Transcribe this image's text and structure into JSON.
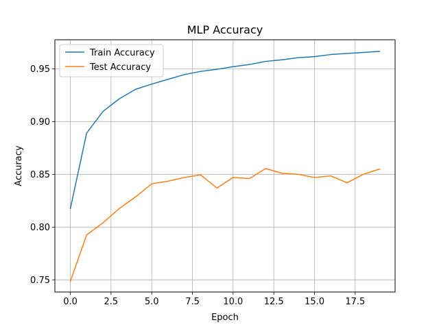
{
  "chart_data": {
    "type": "line",
    "title": "MLP Accuracy",
    "xlabel": "Epoch",
    "ylabel": "Accuracy",
    "xlim": [
      -0.95,
      19.95
    ],
    "ylim": [
      0.7385,
      0.9775
    ],
    "xticks": [
      0.0,
      2.5,
      5.0,
      7.5,
      10.0,
      12.5,
      15.0,
      17.5
    ],
    "xtick_labels": [
      "0.0",
      "2.5",
      "5.0",
      "7.5",
      "10.0",
      "12.5",
      "15.0",
      "17.5"
    ],
    "yticks": [
      0.75,
      0.8,
      0.85,
      0.9,
      0.95
    ],
    "ytick_labels": [
      "0.75",
      "0.80",
      "0.85",
      "0.90",
      "0.95"
    ],
    "grid": true,
    "legend_position": "upper-left",
    "x": [
      0,
      1,
      2,
      3,
      4,
      5,
      6,
      7,
      8,
      9,
      10,
      11,
      12,
      13,
      14,
      15,
      16,
      17,
      18,
      19
    ],
    "series": [
      {
        "name": "Train Accuracy",
        "color": "#1f77b4",
        "values": [
          0.8175,
          0.889,
          0.9095,
          0.9215,
          0.9305,
          0.9355,
          0.94,
          0.9445,
          0.9475,
          0.9495,
          0.952,
          0.954,
          0.957,
          0.9585,
          0.9605,
          0.9615,
          0.9635,
          0.9645,
          0.9655,
          0.9665
        ]
      },
      {
        "name": "Test Accuracy",
        "color": "#ff7f0e",
        "values": [
          0.7485,
          0.7925,
          0.804,
          0.8175,
          0.8285,
          0.841,
          0.8435,
          0.847,
          0.8495,
          0.837,
          0.847,
          0.846,
          0.8555,
          0.851,
          0.85,
          0.847,
          0.8485,
          0.842,
          0.85,
          0.855
        ]
      }
    ]
  }
}
